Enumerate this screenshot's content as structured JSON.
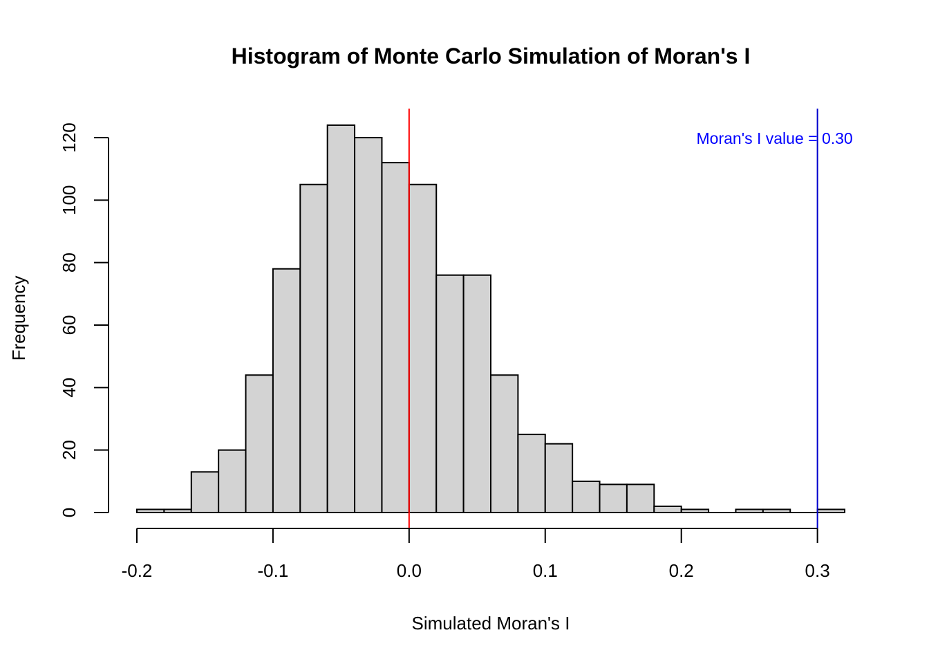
{
  "chart_data": {
    "type": "bar",
    "title": "Histogram of Monte Carlo Simulation of Moran's I",
    "xlabel": "Simulated Moran's I",
    "ylabel": "Frequency",
    "bin_edges": [
      -0.2,
      -0.18,
      -0.16,
      -0.14,
      -0.12,
      -0.1,
      -0.08,
      -0.06,
      -0.04,
      -0.02,
      0.0,
      0.02,
      0.04,
      0.06,
      0.08,
      0.1,
      0.12,
      0.14,
      0.16,
      0.18,
      0.2,
      0.22,
      0.24,
      0.26,
      0.28,
      0.3,
      0.32
    ],
    "values": [
      1,
      1,
      13,
      20,
      44,
      78,
      105,
      124,
      120,
      112,
      105,
      76,
      76,
      44,
      25,
      22,
      10,
      9,
      9,
      2,
      1,
      0,
      1,
      1,
      0,
      1
    ],
    "xlim": [
      -0.2,
      0.32
    ],
    "ylim": [
      0,
      128
    ],
    "x_ticks": [
      -0.2,
      -0.1,
      0.0,
      0.1,
      0.2,
      0.3
    ],
    "x_tick_labels": [
      "-0.2",
      "-0.1",
      "0.0",
      "0.1",
      "0.2",
      "0.3"
    ],
    "y_ticks": [
      0,
      20,
      40,
      60,
      80,
      100,
      120
    ],
    "y_tick_labels": [
      "0",
      "20",
      "40",
      "60",
      "80",
      "100",
      "120"
    ],
    "grid": false,
    "reference_lines": [
      {
        "x": 0.0,
        "color": "#ff0000"
      },
      {
        "x": 0.3,
        "color": "#0000cd"
      }
    ],
    "annotation": {
      "text": "Moran's I value = 0.30",
      "x": 0.3,
      "y": 120,
      "color": "#0000ff"
    }
  }
}
